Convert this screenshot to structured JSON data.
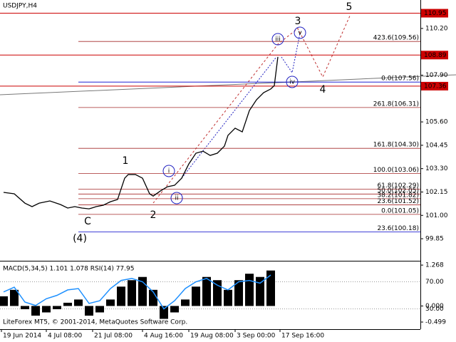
{
  "chart_data": {
    "type": "line",
    "title": "USDJPY,H4",
    "footer": "LiteForex MT5, © 2001-2014, MetaQuotes Software Corp.",
    "series": [
      {
        "color": "#000000",
        "x": [
          1,
          4,
          7,
          9,
          11,
          14,
          17,
          19,
          21,
          23,
          25,
          27,
          29,
          31,
          33,
          35,
          36,
          38,
          40,
          42,
          43,
          45,
          47,
          49,
          51,
          53,
          55,
          57,
          59,
          61,
          63,
          64,
          66,
          68,
          70,
          72,
          74,
          76,
          77,
          78
        ],
        "values": [
          102.13,
          102.06,
          101.6,
          101.43,
          101.6,
          101.71,
          101.53,
          101.36,
          101.43,
          101.36,
          101.32,
          101.43,
          101.5,
          101.67,
          101.78,
          102.83,
          103.01,
          103.01,
          102.83,
          102.06,
          101.95,
          102.2,
          102.41,
          102.48,
          102.83,
          103.53,
          104.06,
          104.16,
          103.95,
          104.06,
          104.41,
          104.94,
          105.29,
          105.11,
          106.16,
          106.69,
          107.04,
          107.22,
          107.39,
          108.8
        ]
      }
    ],
    "xlim": [
      0,
      118
    ],
    "xticks": [
      {
        "value": 0.4,
        "label": "19 Jun 2014"
      },
      {
        "value": 13,
        "label": "4 Jul 08:00"
      },
      {
        "value": 26,
        "label": "21 Jul 08:00"
      },
      {
        "value": 40,
        "label": "4 Aug 16:00"
      },
      {
        "value": 53,
        "label": "19 Aug 08:00"
      },
      {
        "value": 66,
        "label": "3 Sep 00:00"
      },
      {
        "value": 78.6,
        "label": "17 Sep 16:00"
      }
    ],
    "ylim": [
      98.8,
      111.6
    ],
    "yticks": [
      {
        "value": 110.2,
        "label": "110.20"
      },
      {
        "value": 107.9,
        "label": "107.90"
      },
      {
        "value": 105.6,
        "label": "105.60"
      },
      104.45,
      {
        "value": 103.3,
        "label": "103.30"
      },
      102.15,
      {
        "value": 101.0,
        "label": "101.00"
      },
      99.85
    ],
    "price_lines": [
      110.95,
      108.89,
      107.36
    ],
    "price_line_color": "#cc0000",
    "fib_levels": [
      {
        "value": 109.56,
        "label": "423.6(109.56)",
        "color": "#a52a2a"
      },
      {
        "value": 107.56,
        "label": "0.0(107.56)",
        "color": "#0000cc"
      },
      {
        "value": 106.31,
        "label": "261.8(106.31)",
        "color": "#a52a2a"
      },
      {
        "value": 104.3,
        "label": "161.8(104.30)",
        "color": "#a52a2a"
      },
      {
        "value": 103.06,
        "label": "100.0(103.06)",
        "color": "#a52a2a"
      },
      {
        "value": 102.29,
        "label": "61.8(102.29)",
        "color": "#a52a2a"
      },
      {
        "value": 102.05,
        "label": "50.0(102.05)",
        "color": "#a52a2a"
      },
      {
        "value": 101.82,
        "label": "38.2(101.82)",
        "color": "#a52a2a"
      },
      {
        "value": 101.52,
        "label": "23.6(101.52)",
        "color": "#a52a2a"
      },
      {
        "value": 101.05,
        "label": "0.0(101.05)",
        "color": "#a52a2a"
      },
      {
        "value": 100.18,
        "label": "23.6(100.18)",
        "color": "#0000cc"
      }
    ],
    "waves": [
      {
        "text": "1",
        "color": "#b03030"
      },
      {
        "text": "2",
        "color": "#b03030"
      },
      {
        "text": "3",
        "color": "#b03030"
      },
      {
        "text": "4",
        "color": "#b03030"
      },
      {
        "text": "5",
        "color": "#b03030"
      },
      {
        "text": "C",
        "color": "#404040"
      },
      {
        "text": "(4)",
        "color": "#2e8b2e"
      },
      {
        "text": "i",
        "color": "#2020c0"
      },
      {
        "text": "ii",
        "color": "#2020c0"
      },
      {
        "text": "iii",
        "color": "#2020c0"
      },
      {
        "text": "iv",
        "color": "#2020c0"
      },
      {
        "text": "v",
        "color": "#2020c0"
      }
    ],
    "indicator": {
      "type": "bar",
      "title": "MACD(5,34,5) 1.101 1.078 RSI(14) 77.95",
      "x": [
        1,
        4,
        7,
        10,
        13,
        16,
        19,
        22,
        25,
        28,
        31,
        34,
        37,
        40,
        43,
        46,
        49,
        52,
        55,
        58,
        61,
        64,
        67,
        70,
        73,
        76
      ],
      "series": [
        {
          "color": "#000000",
          "values": [
            0.3,
            0.5,
            -0.1,
            -0.3,
            -0.2,
            -0.1,
            0.1,
            0.2,
            -0.3,
            -0.2,
            0.2,
            0.6,
            0.8,
            0.9,
            0.5,
            -0.4,
            -0.2,
            0.2,
            0.6,
            0.9,
            0.8,
            0.5,
            0.8,
            1.0,
            0.9,
            1.1
          ]
        },
        {
          "color": "#1e90ff",
          "axis": "y2",
          "values": [
            55,
            62,
            40,
            35,
            45,
            50,
            58,
            60,
            38,
            42,
            60,
            72,
            75,
            70,
            55,
            30,
            42,
            60,
            70,
            75,
            65,
            58,
            70,
            72,
            68,
            80
          ]
        }
      ],
      "ylim": [
        -0.72,
        1.38
      ],
      "yticks": [
        1.268,
        {
          "value": 0,
          "label": "0.000"
        },
        -0.499
      ],
      "y2lim": [
        0,
        100
      ],
      "y2ticks": [
        {
          "value": 70,
          "label": "70.00"
        },
        {
          "value": 30,
          "label": "30.00"
        }
      ]
    }
  }
}
